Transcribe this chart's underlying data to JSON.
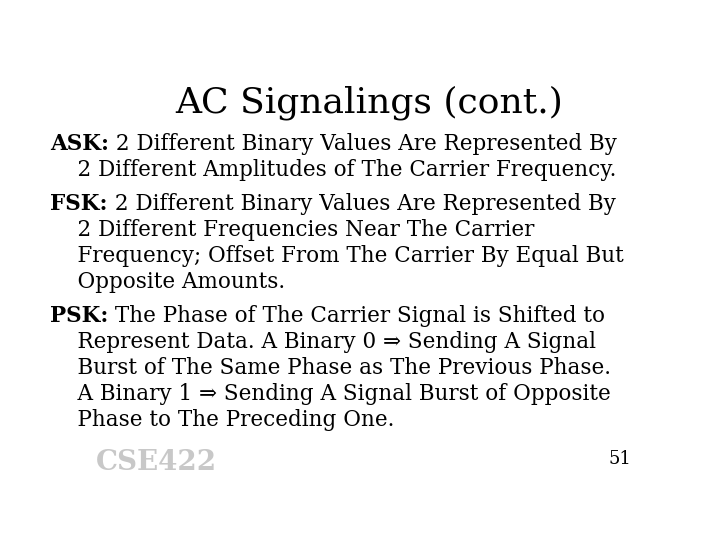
{
  "title": "AC Signalings (cont.)",
  "title_fontsize": 26,
  "background_color": "#ffffff",
  "text_color": "#000000",
  "slide_number": "51",
  "watermark": "CSE422",
  "watermark_color": "#c8c8c8",
  "body_fontsize": 15.5,
  "items": [
    {
      "label": "ASK:",
      "lines": [
        {
          "bold_prefix": "ASK:",
          "text": " 2 Different Binary Values Are Represented By"
        },
        {
          "bold_prefix": "",
          "text": "    2 Different Amplitudes of The Carrier Frequency."
        }
      ]
    },
    {
      "label": "FSK:",
      "lines": [
        {
          "bold_prefix": "FSK:",
          "text": " 2 Different Binary Values Are Represented By"
        },
        {
          "bold_prefix": "",
          "text": "    2 Different Frequencies Near The Carrier"
        },
        {
          "bold_prefix": "",
          "text": "    Frequency; Offset From The Carrier By Equal But"
        },
        {
          "bold_prefix": "",
          "text": "    Opposite Amounts."
        }
      ]
    },
    {
      "label": "PSK:",
      "lines": [
        {
          "bold_prefix": "PSK:",
          "text": " The Phase of The Carrier Signal is Shifted to"
        },
        {
          "bold_prefix": "",
          "text": "    Represent Data. A Binary 0 ⇒ Sending A Signal"
        },
        {
          "bold_prefix": "",
          "text": "    Burst of The Same Phase as The Previous Phase."
        },
        {
          "bold_prefix": "",
          "text": "    A Binary 1 ⇒ Sending A Signal Burst of Opposite"
        },
        {
          "bold_prefix": "",
          "text": "    Phase to The Preceding One."
        }
      ]
    }
  ]
}
